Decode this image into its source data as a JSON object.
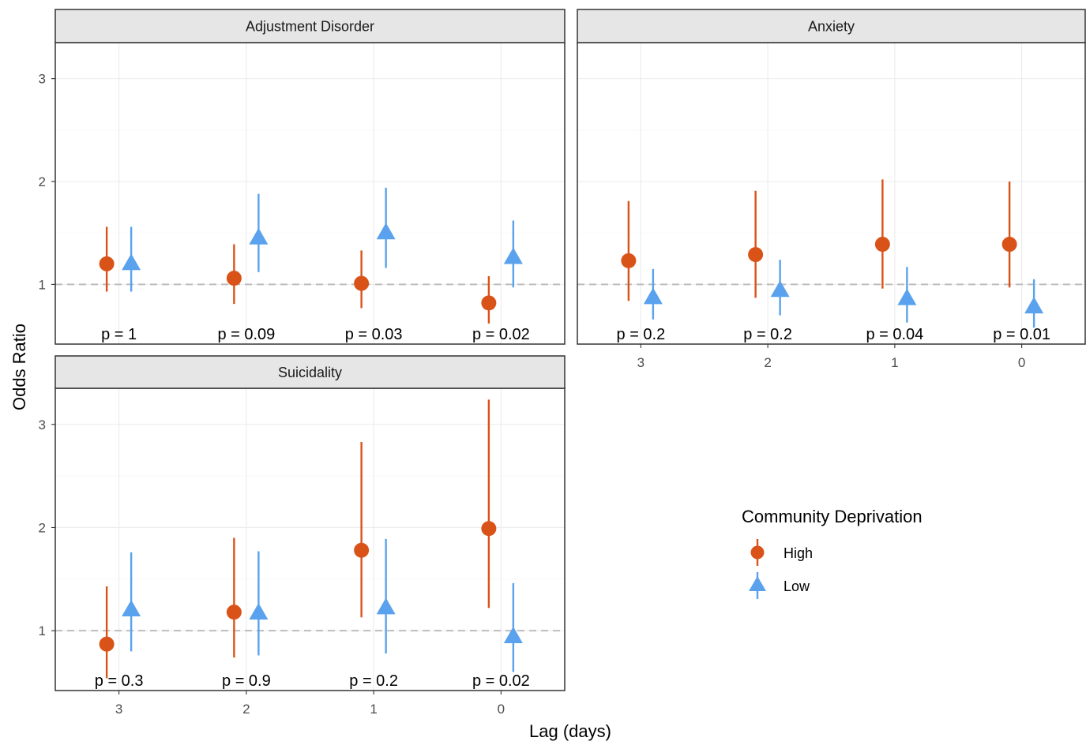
{
  "chart_data": {
    "type": "scatter",
    "subtype": "faceted point-range (odds ratios with confidence intervals)",
    "xlabel": "Lag (days)",
    "ylabel": "Odds Ratio",
    "x_categories": [
      "3",
      "2",
      "1",
      "0"
    ],
    "y_ticks": [
      "1",
      "2",
      "3"
    ],
    "ylim": [
      0.42,
      3.35
    ],
    "reference_line": 1,
    "grid": true,
    "legend": {
      "title": "Community Deprivation",
      "placement": "right",
      "items": [
        {
          "name": "High",
          "color": "#d95319",
          "shape": "circle"
        },
        {
          "name": "Low",
          "color": "#5aa2ed",
          "shape": "triangle"
        }
      ]
    },
    "facets": [
      {
        "title": "Adjustment Disorder",
        "high": [
          {
            "x": "3",
            "or": 1.2,
            "lo": 0.93,
            "hi": 1.56
          },
          {
            "x": "2",
            "or": 1.06,
            "lo": 0.81,
            "hi": 1.39
          },
          {
            "x": "1",
            "or": 1.01,
            "lo": 0.77,
            "hi": 1.33
          },
          {
            "x": "0",
            "or": 0.82,
            "lo": 0.62,
            "hi": 1.08
          }
        ],
        "low": [
          {
            "x": "3",
            "or": 1.2,
            "lo": 0.93,
            "hi": 1.56
          },
          {
            "x": "2",
            "or": 1.45,
            "lo": 1.12,
            "hi": 1.88
          },
          {
            "x": "1",
            "or": 1.5,
            "lo": 1.16,
            "hi": 1.94
          },
          {
            "x": "0",
            "or": 1.26,
            "lo": 0.97,
            "hi": 1.62
          }
        ],
        "p_values": [
          "p = 1",
          "p = 0.09",
          "p = 0.03",
          "p = 0.02"
        ]
      },
      {
        "title": "Anxiety",
        "high": [
          {
            "x": "3",
            "or": 1.23,
            "lo": 0.84,
            "hi": 1.81
          },
          {
            "x": "2",
            "or": 1.29,
            "lo": 0.87,
            "hi": 1.91
          },
          {
            "x": "1",
            "or": 1.39,
            "lo": 0.96,
            "hi": 2.02
          },
          {
            "x": "0",
            "or": 1.39,
            "lo": 0.97,
            "hi": 2.0
          }
        ],
        "low": [
          {
            "x": "3",
            "or": 0.87,
            "lo": 0.66,
            "hi": 1.15
          },
          {
            "x": "2",
            "or": 0.94,
            "lo": 0.7,
            "hi": 1.24
          },
          {
            "x": "1",
            "or": 0.86,
            "lo": 0.63,
            "hi": 1.17
          },
          {
            "x": "0",
            "or": 0.78,
            "lo": 0.58,
            "hi": 1.05
          }
        ],
        "p_values": [
          "p = 0.2",
          "p = 0.2",
          "p = 0.04",
          "p = 0.01"
        ]
      },
      {
        "title": "Suicidality",
        "high": [
          {
            "x": "3",
            "or": 0.87,
            "lo": 0.54,
            "hi": 1.43
          },
          {
            "x": "2",
            "or": 1.18,
            "lo": 0.74,
            "hi": 1.9
          },
          {
            "x": "1",
            "or": 1.78,
            "lo": 1.13,
            "hi": 2.83
          },
          {
            "x": "0",
            "or": 1.99,
            "lo": 1.22,
            "hi": 3.24
          }
        ],
        "low": [
          {
            "x": "3",
            "or": 1.2,
            "lo": 0.8,
            "hi": 1.76
          },
          {
            "x": "2",
            "or": 1.17,
            "lo": 0.76,
            "hi": 1.77
          },
          {
            "x": "1",
            "or": 1.22,
            "lo": 0.78,
            "hi": 1.89
          },
          {
            "x": "0",
            "or": 0.94,
            "lo": 0.6,
            "hi": 1.46
          }
        ],
        "p_values": [
          "p = 0.3",
          "p = 0.9",
          "p = 0.2",
          "p = 0.02"
        ]
      }
    ]
  }
}
